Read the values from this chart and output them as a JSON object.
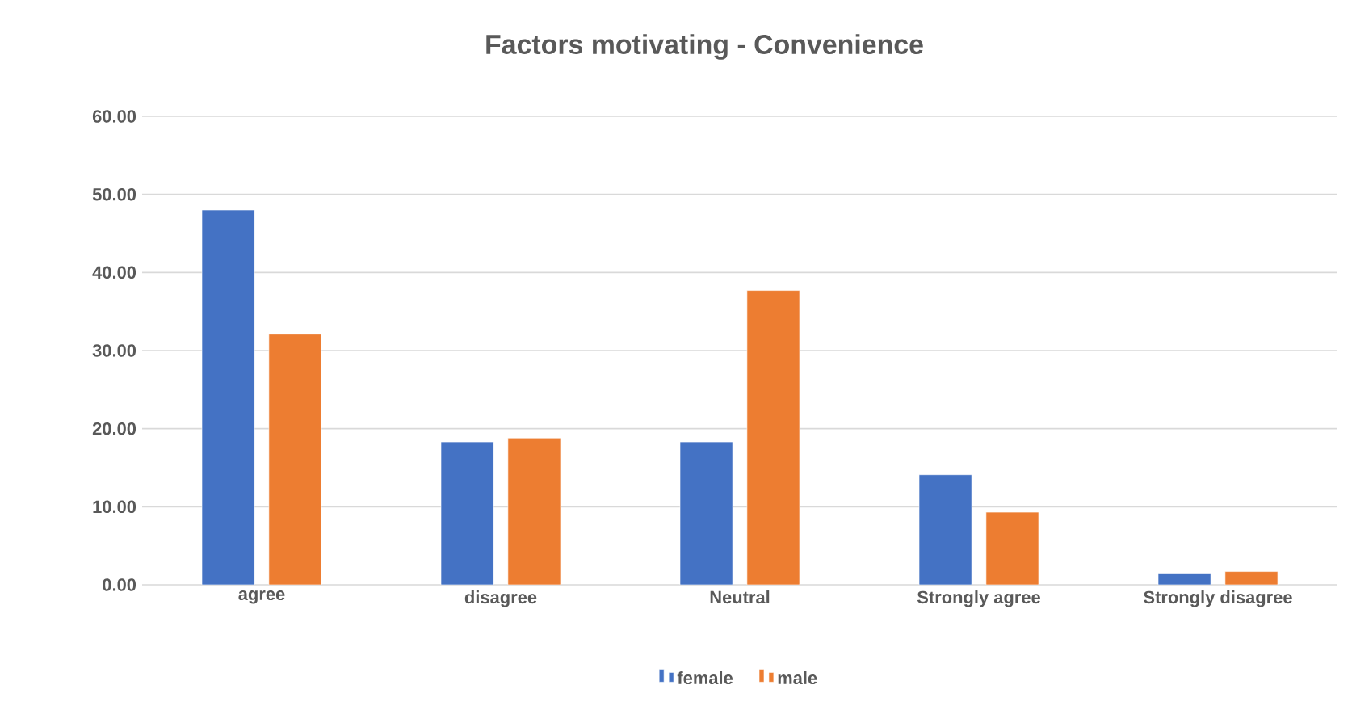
{
  "chart_data": {
    "type": "bar",
    "title": "Factors motivating - Convenience",
    "categories": [
      "agree",
      "disagree",
      "Neutral",
      "Strongly agree",
      "Strongly disagree"
    ],
    "series": [
      {
        "name": "female",
        "color": "#4472c4",
        "values": [
          48.0,
          18.3,
          18.3,
          14.1,
          1.5
        ]
      },
      {
        "name": "male",
        "color": "#ed7d31",
        "values": [
          32.1,
          18.8,
          37.7,
          9.3,
          1.7
        ]
      }
    ],
    "ylim": [
      0,
      60
    ],
    "yticks": [
      {
        "value": 0,
        "label": "0.00"
      },
      {
        "value": 10,
        "label": "10.00"
      },
      {
        "value": 20,
        "label": "20.00"
      },
      {
        "value": 30,
        "label": "30.00"
      },
      {
        "value": 40,
        "label": "40.00"
      },
      {
        "value": 50,
        "label": "50.00"
      },
      {
        "value": 60,
        "label": "60.00"
      }
    ],
    "grid": "y",
    "legend": "bottom"
  }
}
